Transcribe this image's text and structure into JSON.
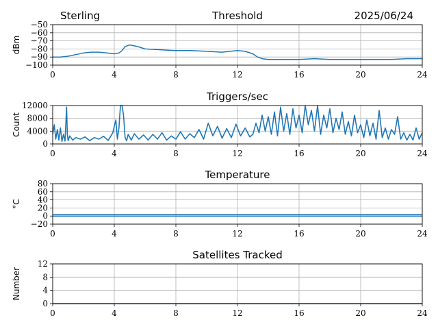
{
  "header": {
    "station": "Sterling",
    "date": "2025/06/24"
  },
  "colors": {
    "series": "#1f77b4",
    "grid": "#b0b0b0",
    "axes": "#000000"
  },
  "chart_data": [
    {
      "type": "line",
      "title": "Threshold",
      "ylabel": "dBm",
      "xlim": [
        0,
        24
      ],
      "ylim": [
        -100,
        -50
      ],
      "xticks": [
        0,
        4,
        8,
        12,
        16,
        20,
        24
      ],
      "yticks": [
        -100,
        -90,
        -80,
        -70,
        -60,
        -50
      ],
      "ytick_labels": [
        "−100",
        "−90",
        "−80",
        "−70",
        "−60",
        "−50"
      ],
      "grid": true,
      "series": [
        {
          "x": [
            0,
            0.5,
            1,
            1.5,
            2,
            2.5,
            3,
            3.5,
            4,
            4.3,
            4.5,
            4.7,
            5,
            5.5,
            6,
            7,
            8,
            9,
            10,
            11,
            11.5,
            12,
            12.5,
            13,
            13.3,
            13.6,
            14,
            15,
            16,
            17,
            18,
            19,
            20,
            21,
            22,
            23,
            24
          ],
          "y": [
            -90,
            -90,
            -89,
            -87,
            -85,
            -84,
            -84,
            -85,
            -86,
            -85,
            -82,
            -77,
            -75,
            -77,
            -80,
            -81,
            -82,
            -82,
            -83,
            -84,
            -83,
            -82,
            -83,
            -86,
            -90,
            -92,
            -93,
            -93,
            -93,
            -92,
            -93,
            -93,
            -93,
            -93,
            -93,
            -92,
            -92
          ]
        }
      ]
    },
    {
      "type": "line",
      "title": "Triggers/sec",
      "ylabel": "Count",
      "xlim": [
        0,
        24
      ],
      "ylim": [
        0,
        12000
      ],
      "xticks": [
        0,
        4,
        8,
        12,
        16,
        20,
        24
      ],
      "yticks": [
        0,
        4000,
        8000,
        12000
      ],
      "ytick_labels": [
        "0",
        "4000",
        "8000",
        "12000"
      ],
      "grid": true,
      "series": [
        {
          "x": [
            0,
            0.1,
            0.2,
            0.3,
            0.4,
            0.5,
            0.6,
            0.7,
            0.8,
            0.9,
            0.95,
            1.0,
            1.1,
            1.3,
            1.5,
            1.8,
            2.1,
            2.4,
            2.7,
            3.0,
            3.3,
            3.6,
            3.9,
            4.1,
            4.2,
            4.3,
            4.4,
            4.5,
            4.6,
            4.7,
            4.8,
            4.9,
            5.1,
            5.3,
            5.6,
            5.9,
            6.2,
            6.5,
            6.8,
            7.1,
            7.4,
            7.7,
            8.0,
            8.3,
            8.6,
            8.9,
            9.2,
            9.5,
            9.8,
            10.1,
            10.4,
            10.7,
            11.0,
            11.3,
            11.6,
            11.9,
            12.2,
            12.5,
            12.8,
            13.0,
            13.2,
            13.4,
            13.6,
            13.8,
            14.0,
            14.2,
            14.4,
            14.6,
            14.8,
            15.0,
            15.2,
            15.4,
            15.6,
            15.8,
            16.0,
            16.2,
            16.4,
            16.6,
            16.8,
            17.0,
            17.2,
            17.4,
            17.6,
            17.8,
            18.0,
            18.2,
            18.4,
            18.6,
            18.8,
            19.0,
            19.2,
            19.4,
            19.6,
            19.8,
            20.0,
            20.2,
            20.4,
            20.6,
            20.8,
            21.0,
            21.2,
            21.4,
            21.6,
            21.8,
            22.0,
            22.2,
            22.4,
            22.6,
            22.8,
            23.0,
            23.2,
            23.4,
            23.6,
            23.8,
            24.0
          ],
          "y": [
            3000,
            6000,
            1500,
            4500,
            1200,
            5000,
            800,
            3000,
            900,
            11500,
            3000,
            1000,
            2500,
            1200,
            2000,
            1500,
            2200,
            1000,
            2000,
            1500,
            2400,
            1100,
            3500,
            7500,
            1500,
            5000,
            12000,
            12000,
            9000,
            2000,
            1000,
            3000,
            1200,
            3200,
            1500,
            2800,
            1200,
            3000,
            1500,
            3500,
            1200,
            2500,
            1500,
            3800,
            1500,
            3200,
            2000,
            4500,
            1500,
            6500,
            2500,
            5500,
            1800,
            4800,
            2000,
            6200,
            2500,
            5000,
            2200,
            3000,
            6500,
            3500,
            9000,
            4000,
            8500,
            3000,
            10000,
            2500,
            11500,
            4000,
            9500,
            3000,
            11000,
            5000,
            9000,
            3500,
            12000,
            6000,
            10500,
            4000,
            12000,
            3000,
            9000,
            5000,
            11000,
            3500,
            8000,
            4500,
            10000,
            3000,
            7000,
            2500,
            9000,
            3500,
            6000,
            2000,
            7500,
            2500,
            6500,
            1500,
            10500,
            2000,
            5000,
            1500,
            4500,
            3000,
            8500,
            1500,
            3500,
            1200,
            3000,
            1200,
            5000,
            1500,
            3500
          ]
        }
      ]
    },
    {
      "type": "line",
      "title": "Temperature",
      "ylabel": "°C",
      "xlim": [
        0,
        24
      ],
      "ylim": [
        -20,
        80
      ],
      "xticks": [
        0,
        4,
        8,
        12,
        16,
        20,
        24
      ],
      "yticks": [
        -20,
        0,
        20,
        40,
        60,
        80
      ],
      "ytick_labels": [
        "−20",
        "0",
        "20",
        "40",
        "60",
        "80"
      ],
      "grid": true,
      "series": [
        {
          "x": [
            0,
            24
          ],
          "y": [
            0,
            0
          ]
        },
        {
          "x": [
            0,
            24
          ],
          "y": [
            4,
            4
          ]
        }
      ]
    },
    {
      "type": "line",
      "title": "Satellites Tracked",
      "ylabel": "Number",
      "xlim": [
        0,
        24
      ],
      "ylim": [
        0,
        12
      ],
      "xticks": [
        0,
        4,
        8,
        12,
        16,
        20,
        24
      ],
      "yticks": [
        0,
        4,
        8,
        12
      ],
      "ytick_labels": [
        "0",
        "4",
        "8",
        "12"
      ],
      "grid": true,
      "series": [
        {
          "x": [
            0,
            24
          ],
          "y": [
            0,
            0
          ]
        }
      ]
    }
  ]
}
